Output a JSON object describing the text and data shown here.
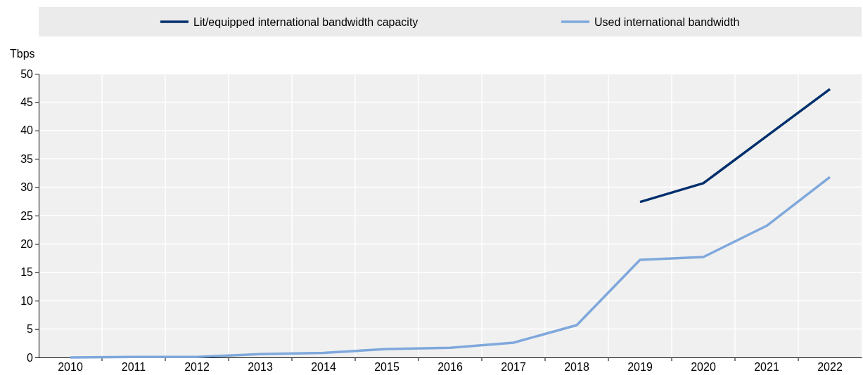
{
  "chart_data": {
    "type": "line",
    "ylabel": "Tbps",
    "categories": [
      "2010",
      "2011",
      "2012",
      "2013",
      "2014",
      "2015",
      "2016",
      "2017",
      "2018",
      "2019",
      "2020",
      "2021",
      "2022"
    ],
    "series": [
      {
        "name": "Lit/equipped international bandwidth capacity",
        "color": "#002f6c",
        "values": [
          null,
          null,
          null,
          null,
          null,
          null,
          null,
          null,
          null,
          27.4,
          30.7,
          39,
          47.3
        ]
      },
      {
        "name": "Used international bandwidth",
        "color": "#7fa8dc",
        "values": [
          0,
          0.1,
          0.1,
          0.6,
          0.8,
          1.5,
          1.7,
          2.6,
          5.7,
          17.2,
          17.7,
          23.2,
          31.8
        ]
      }
    ],
    "ylim": [
      0,
      50
    ],
    "yticks": [
      0,
      5,
      10,
      15,
      20,
      25,
      30,
      35,
      40,
      45,
      50
    ],
    "grid": true,
    "legend": "top",
    "marker": "none",
    "line_style": "solid"
  }
}
